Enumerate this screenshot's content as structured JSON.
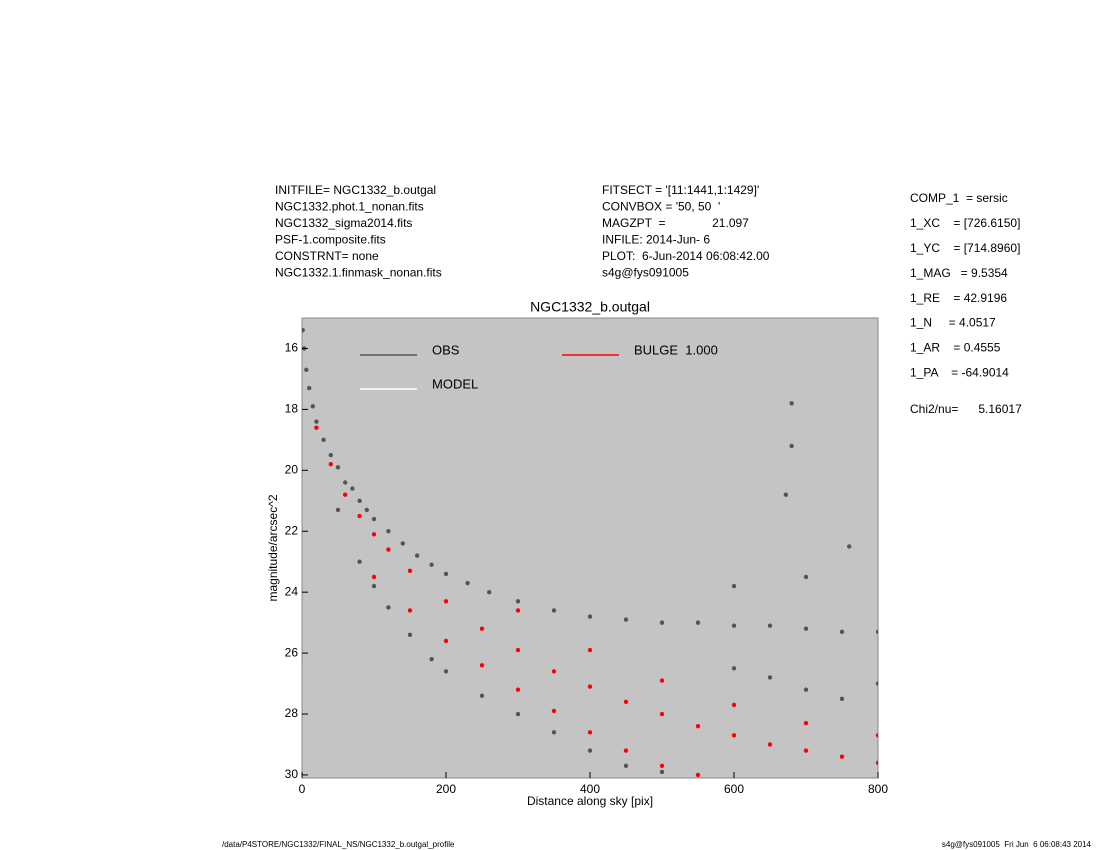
{
  "chart_data": {
    "type": "scatter",
    "title": "NGC1332_b.outgal",
    "x_label": "Distance along sky [pix]",
    "y_label": "magnitude/arcsec^2",
    "header_left": [
      "INITFILE= NGC1332_b.outgal",
      "NGC1332.phot.1_nonan.fits",
      "NGC1332_sigma2014.fits",
      "PSF-1.composite.fits",
      "CONSTRNT= none",
      "NGC1332.1.finmask_nonan.fits"
    ],
    "header_middle": [
      "FITSECT = '[11:1441,1:1429]'",
      "CONVBOX = '50, 50  '",
      "MAGZPT  =              21.097",
      "INFILE: 2014-Jun- 6",
      "PLOT:  6-Jun-2014 06:08:42.00",
      "s4g@fys091005"
    ],
    "components": [
      "COMP_1  = sersic",
      "1_XC    = [726.6150]",
      "1_YC    = [714.8960]",
      "1_MAG   = 9.5354",
      "1_RE    = 42.9196",
      "1_N     = 4.0517",
      "1_AR    = 0.4555",
      "1_PA    = -64.9014"
    ],
    "chi2": "Chi2/nu=      5.16017",
    "footer_left": "/data/P4STORE/NGC1332/FINAL_NS/NGC1332_b.outgal_profile",
    "footer_right": "s4g@fys091005  Fri Jun  6 06:08:43 2014",
    "xlim": [
      0,
      800
    ],
    "ylim": [
      30.1,
      15
    ],
    "xticks": [
      0,
      200,
      400,
      600,
      800
    ],
    "yticks": [
      16,
      18,
      20,
      22,
      24,
      26,
      28,
      30
    ],
    "grid": false,
    "background": "#c4c4c4",
    "series": [
      {
        "name": "OBS",
        "color": "#555555",
        "x": [
          1,
          3,
          6,
          10,
          15,
          20,
          30,
          40,
          50,
          60,
          70,
          80,
          90,
          100,
          120,
          140,
          160,
          180,
          200,
          230,
          260,
          300,
          350,
          400,
          450,
          500,
          550,
          600,
          650,
          700,
          750,
          800,
          50,
          80,
          100,
          120,
          150,
          180,
          200,
          250,
          300,
          350,
          400,
          450,
          500,
          600,
          650,
          700,
          750,
          800,
          600,
          700,
          760,
          680,
          680,
          672
        ],
        "y": [
          15.4,
          16,
          16.7,
          17.3,
          17.9,
          18.4,
          19.0,
          19.5,
          19.9,
          20.4,
          20.6,
          21.0,
          21.3,
          21.6,
          22.0,
          22.4,
          22.8,
          23.1,
          23.4,
          23.7,
          24.0,
          24.3,
          24.6,
          24.8,
          24.9,
          25.0,
          25.0,
          25.1,
          25.1,
          25.2,
          25.3,
          25.3,
          21.3,
          23.0,
          23.8,
          24.5,
          25.4,
          26.2,
          26.6,
          27.4,
          28.0,
          28.6,
          29.2,
          29.7,
          29.9,
          26.5,
          26.8,
          27.2,
          27.5,
          27.0,
          23.8,
          23.5,
          22.5,
          17.8,
          19.2,
          20.8
        ]
      },
      {
        "name": "MODEL",
        "color": "#ffffff",
        "x": [],
        "y": []
      },
      {
        "name": "BULGE  1.000",
        "color": "#ff0000",
        "x": [
          20,
          40,
          60,
          80,
          100,
          120,
          150,
          200,
          250,
          300,
          350,
          400,
          450,
          500,
          550,
          600,
          650,
          700,
          750,
          800,
          100,
          150,
          200,
          250,
          300,
          350,
          400,
          450,
          500,
          550,
          300,
          400,
          500,
          600,
          700,
          800
        ],
        "y": [
          18.6,
          19.8,
          20.8,
          21.5,
          22.1,
          22.6,
          23.3,
          24.3,
          25.2,
          25.9,
          26.6,
          27.1,
          27.6,
          28.0,
          28.4,
          28.7,
          29.0,
          29.2,
          29.4,
          29.6,
          23.5,
          24.6,
          25.6,
          26.4,
          27.2,
          27.9,
          28.6,
          29.2,
          29.7,
          30.0,
          24.6,
          25.9,
          26.9,
          27.7,
          28.3,
          28.7
        ]
      }
    ]
  }
}
